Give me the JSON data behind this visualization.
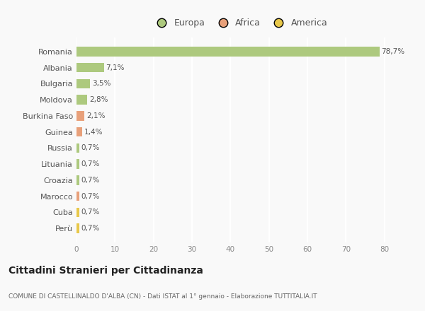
{
  "categories": [
    "Romania",
    "Albania",
    "Bulgaria",
    "Moldova",
    "Burkina Faso",
    "Guinea",
    "Russia",
    "Lituania",
    "Croazia",
    "Marocco",
    "Cuba",
    "Perù"
  ],
  "values": [
    78.7,
    7.1,
    3.5,
    2.8,
    2.1,
    1.4,
    0.7,
    0.7,
    0.7,
    0.7,
    0.7,
    0.7
  ],
  "labels": [
    "78,7%",
    "7,1%",
    "3,5%",
    "2,8%",
    "2,1%",
    "1,4%",
    "0,7%",
    "0,7%",
    "0,7%",
    "0,7%",
    "0,7%",
    "0,7%"
  ],
  "colors": [
    "#adc97e",
    "#adc97e",
    "#adc97e",
    "#adc97e",
    "#e8a07a",
    "#e8a07a",
    "#adc97e",
    "#adc97e",
    "#adc97e",
    "#e8a07a",
    "#e8c84a",
    "#e8c84a"
  ],
  "continent": [
    "Europa",
    "Europa",
    "Europa",
    "Europa",
    "Africa",
    "Africa",
    "Europa",
    "Europa",
    "Europa",
    "Africa",
    "America",
    "America"
  ],
  "legend_labels": [
    "Europa",
    "Africa",
    "America"
  ],
  "legend_colors": [
    "#adc97e",
    "#e8a07a",
    "#e8c84a"
  ],
  "title": "Cittadini Stranieri per Cittadinanza",
  "subtitle": "COMUNE DI CASTELLINALDO D'ALBA (CN) - Dati ISTAT al 1° gennaio - Elaborazione TUTTITALIA.IT",
  "xlim": [
    0,
    85
  ],
  "xticks": [
    0,
    10,
    20,
    30,
    40,
    50,
    60,
    70,
    80
  ],
  "background_color": "#f9f9f9",
  "grid_color": "#ffffff",
  "bar_height": 0.6,
  "figsize": [
    6.0,
    4.4
  ],
  "dpi": 100
}
